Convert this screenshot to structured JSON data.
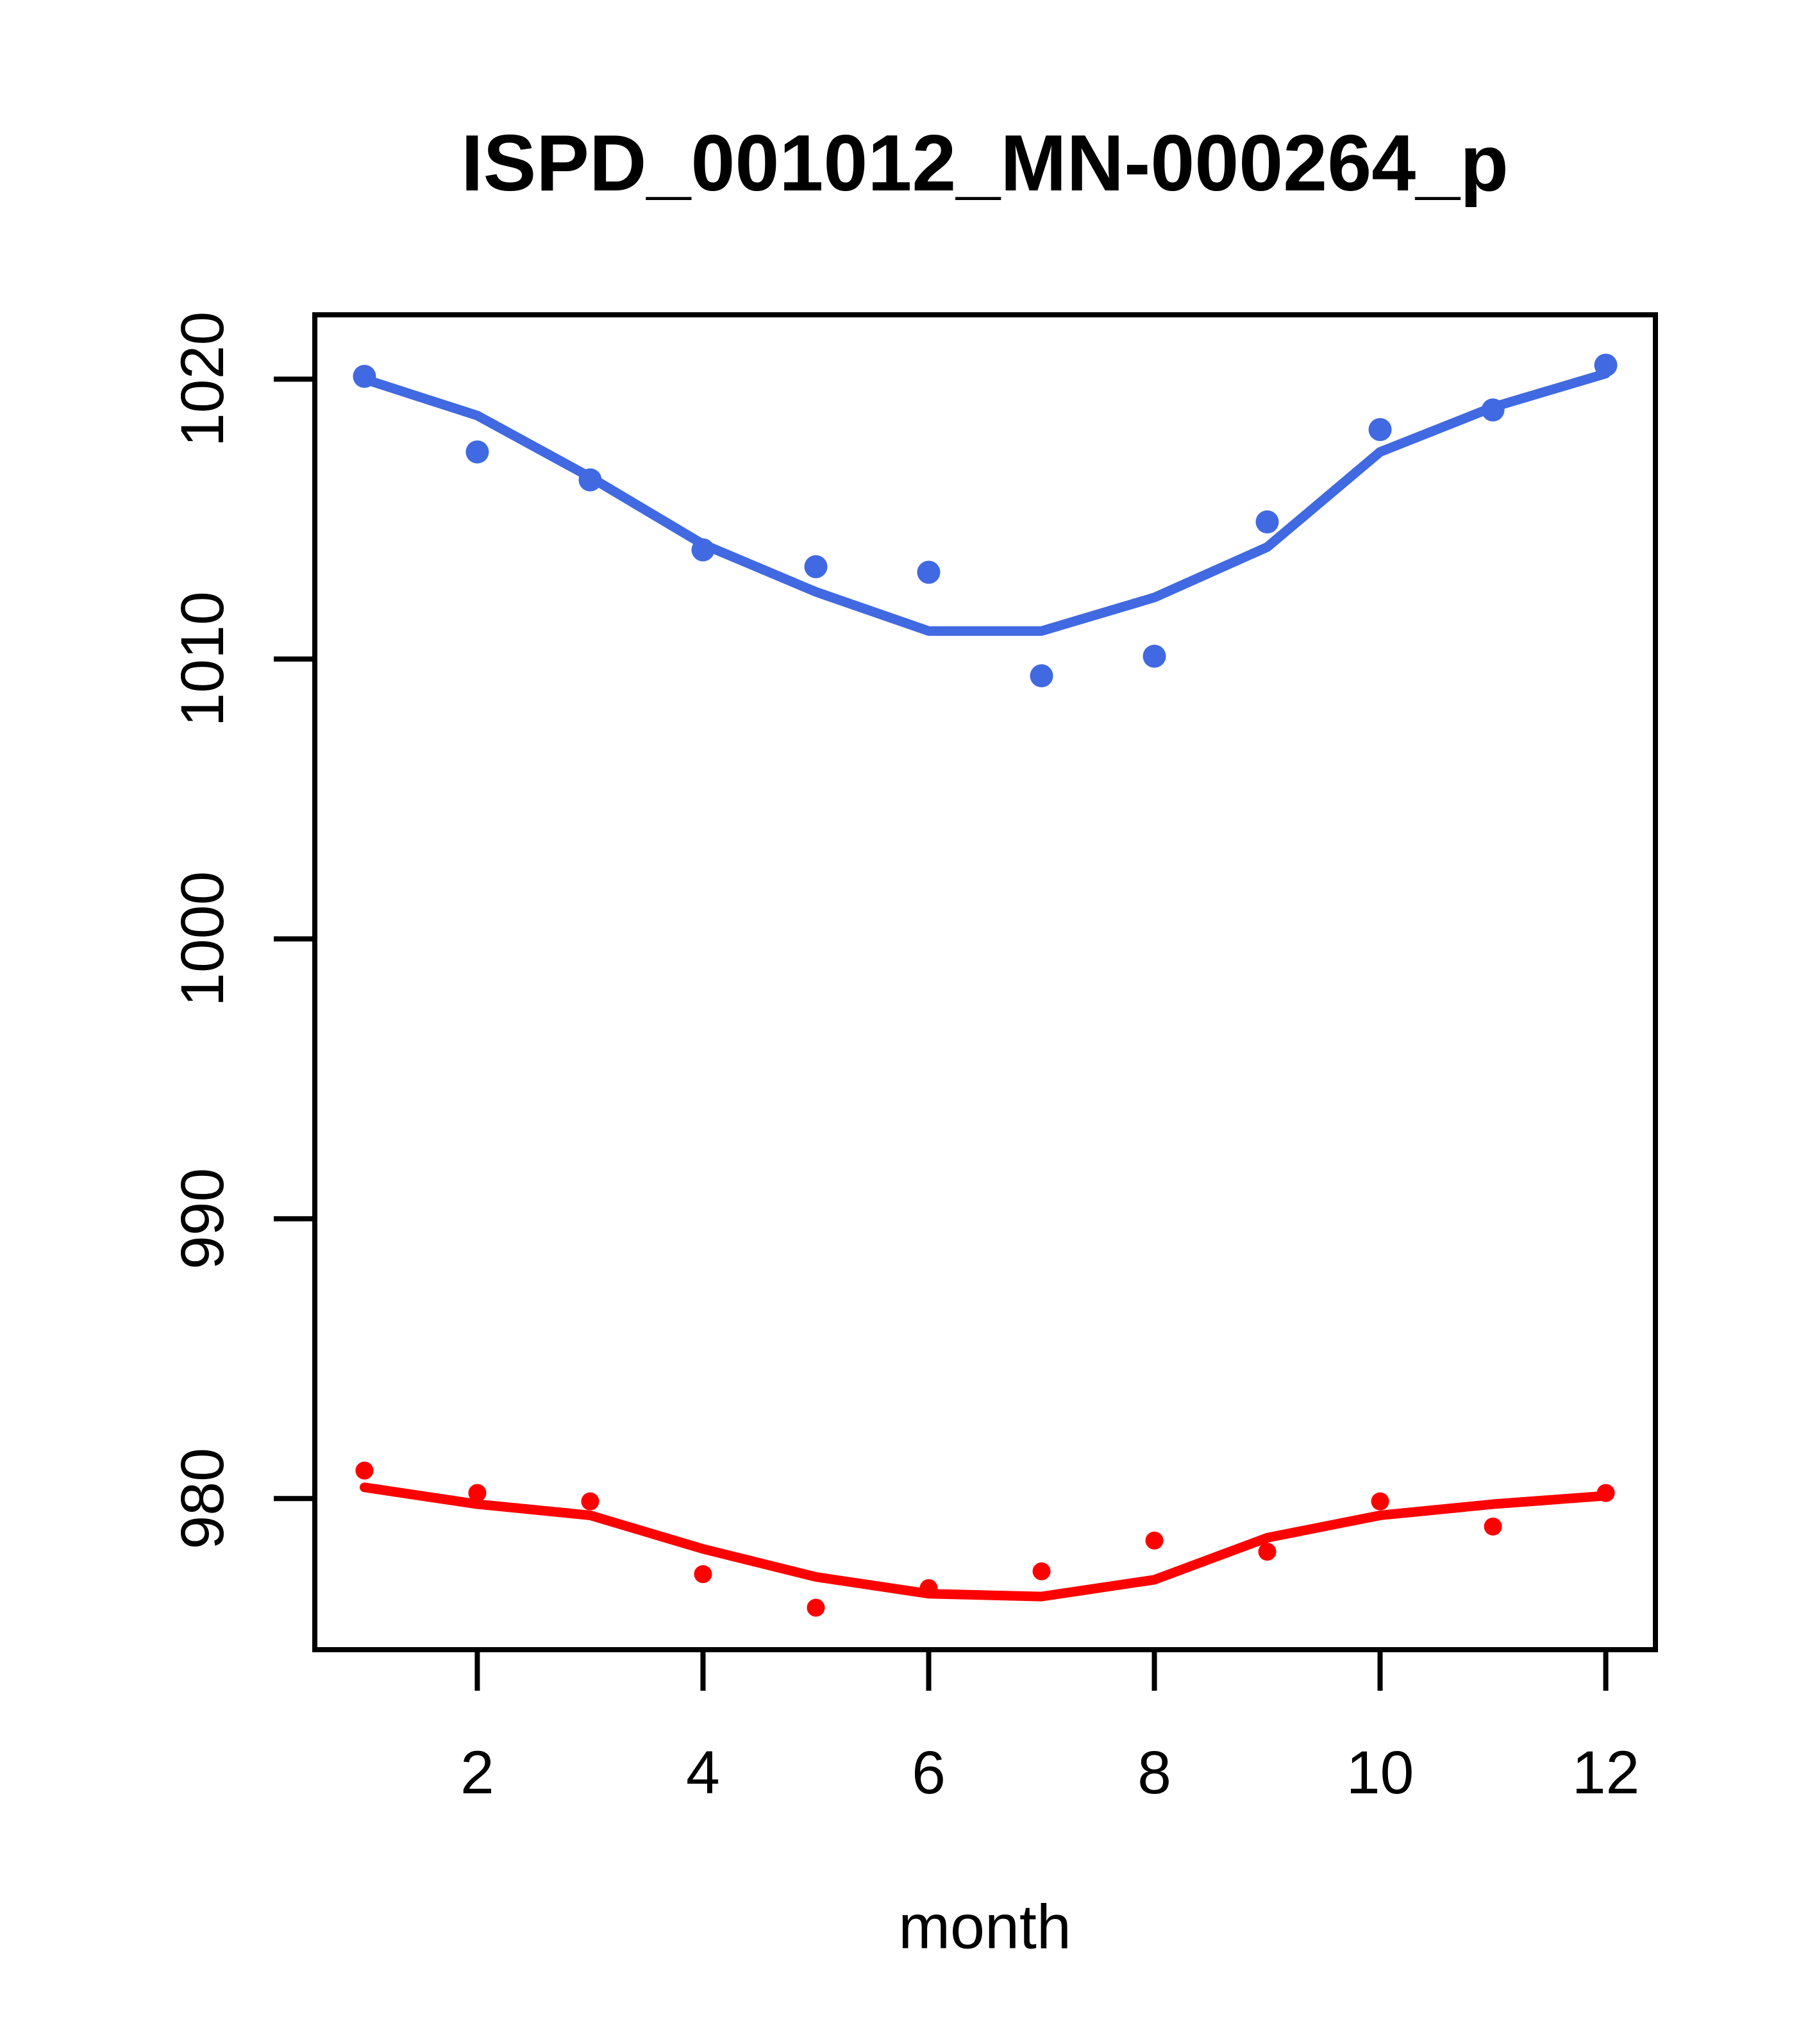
{
  "figure": {
    "background_color": "#ffffff",
    "axis_color": "#000000",
    "title": "ISPD_001012_MN-000264_p"
  },
  "chart_data": {
    "type": "scatter",
    "title": "ISPD_001012_MN-000264_p",
    "xlabel": "month",
    "ylabel": "",
    "grid": false,
    "legend_position": "none",
    "x": [
      1,
      2,
      3,
      4,
      5,
      6,
      7,
      8,
      9,
      10,
      11,
      12
    ],
    "xlim": [
      0.56,
      12.44
    ],
    "ylim": [
      974.6,
      1022.3
    ],
    "xticks": [
      2,
      4,
      6,
      8,
      10,
      12
    ],
    "yticks": [
      980,
      990,
      1000,
      1010,
      1020
    ],
    "series": [
      {
        "name": "blue-observations",
        "type": "points",
        "color": "#4169e1",
        "marker": "filled-circle",
        "marker_radius": 18,
        "values": [
          1020.1,
          1017.4,
          1016.4,
          1013.9,
          1013.3,
          1013.1,
          1009.4,
          1010.1,
          1014.9,
          1018.2,
          1018.9,
          1020.5
        ]
      },
      {
        "name": "blue-smooth-line",
        "type": "line",
        "color": "#4169e1",
        "line_width": 15,
        "values": [
          1020.0,
          1018.7,
          1016.5,
          1014.1,
          1012.4,
          1011.0,
          1011.0,
          1012.2,
          1014.0,
          1017.4,
          1019.0,
          1020.2
        ]
      },
      {
        "name": "red-observations",
        "type": "points",
        "color": "#ff0000",
        "marker": "filled-circle",
        "marker_radius": 14,
        "values": [
          981.0,
          980.2,
          979.9,
          977.3,
          976.1,
          976.8,
          977.4,
          978.5,
          978.1,
          979.9,
          979.0,
          980.2
        ]
      },
      {
        "name": "red-smooth-line",
        "type": "line",
        "color": "#ff0000",
        "line_width": 15,
        "values": [
          980.4,
          979.8,
          979.4,
          978.2,
          977.2,
          976.6,
          976.5,
          977.1,
          978.6,
          979.4,
          979.8,
          980.1
        ]
      }
    ]
  }
}
